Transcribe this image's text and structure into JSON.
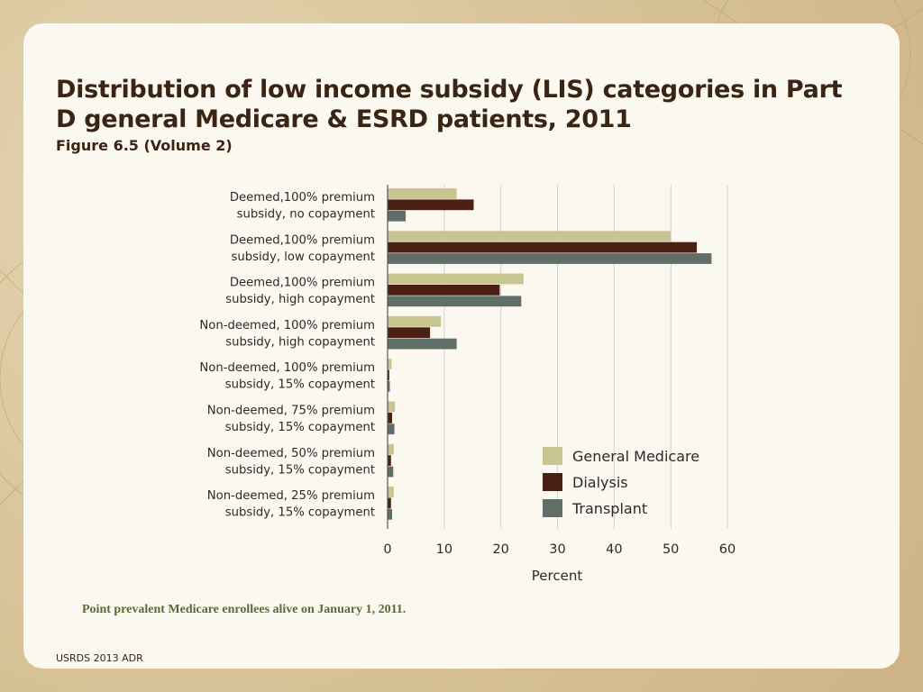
{
  "slide": {
    "title": "Distribution of low income subsidy (LIS) categories in Part D general Medicare & ESRD patients, 2011",
    "subtitle": "Figure 6.5 (Volume 2)",
    "note": "Point prevalent Medicare enrollees alive on January 1, 2011.",
    "footer": "USRDS 2013 ADR"
  },
  "colors": {
    "general_medicare": "#c9c591",
    "dialysis": "#4a2014",
    "transplant": "#5f6e66",
    "title_text": "#3a2414",
    "note_text": "#5a6b35"
  },
  "chart_data": {
    "type": "bar",
    "orientation": "horizontal",
    "categories": [
      [
        "Deemed,100% premium",
        "subsidy, no copayment"
      ],
      [
        "Deemed,100% premium",
        "subsidy, low copayment"
      ],
      [
        "Deemed,100% premium",
        "subsidy, high copayment"
      ],
      [
        "Non-deemed, 100% premium",
        "subsidy, high copayment"
      ],
      [
        "Non-deemed, 100% premium",
        "subsidy, 15% copayment"
      ],
      [
        "Non-deemed, 75% premium",
        "subsidy, 15% copayment"
      ],
      [
        "Non-deemed, 50% premium",
        "subsidy, 15% copayment"
      ],
      [
        "Non-deemed, 25% premium",
        "subsidy, 15% copayment"
      ]
    ],
    "series": [
      {
        "name": "General Medicare",
        "color": "#c9c591",
        "values": [
          12.2,
          50.0,
          24.0,
          9.4,
          0.7,
          1.3,
          1.1,
          1.1
        ]
      },
      {
        "name": "Dialysis",
        "color": "#4a2014",
        "values": [
          15.2,
          54.6,
          19.8,
          7.5,
          0.3,
          0.8,
          0.6,
          0.6
        ]
      },
      {
        "name": "Transplant",
        "color": "#5f6e66",
        "values": [
          3.2,
          57.2,
          23.6,
          12.2,
          0.4,
          1.2,
          1.0,
          0.8
        ]
      }
    ],
    "xlabel": "Percent",
    "ylabel": "",
    "xlim": [
      0,
      60
    ],
    "xticks": [
      0,
      10,
      20,
      30,
      40,
      50,
      60
    ],
    "grid": "vertical",
    "legend_position": "bottom-right"
  }
}
